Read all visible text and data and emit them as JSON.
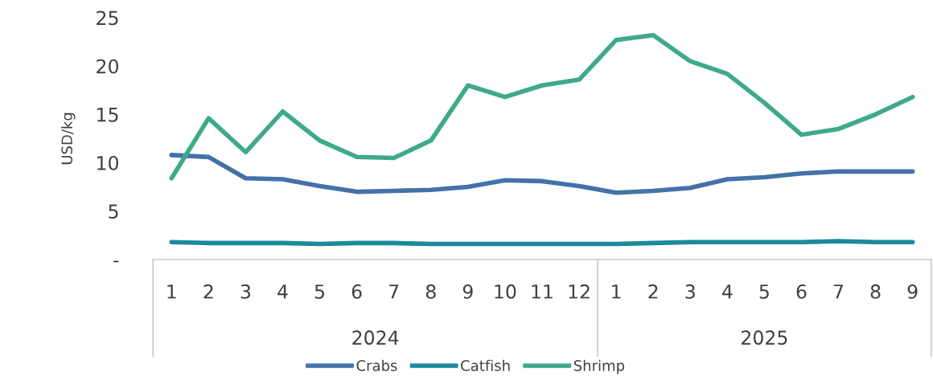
{
  "chart_data": {
    "type": "line",
    "ylabel": "USD/kg",
    "categories": [
      "1",
      "2",
      "3",
      "4",
      "5",
      "6",
      "7",
      "8",
      "9",
      "10",
      "11",
      "12",
      "1",
      "2",
      "3",
      "4",
      "5",
      "6",
      "7",
      "8",
      "9"
    ],
    "annotations": [
      "2024",
      "2025"
    ],
    "series": [
      {
        "name": "Crabs",
        "color": "#4472a8",
        "values": [
          10.8,
          10.6,
          8.4,
          8.3,
          7.6,
          7.0,
          7.1,
          7.2,
          7.5,
          8.2,
          8.1,
          7.6,
          6.9,
          7.1,
          7.4,
          8.3,
          8.5,
          8.9,
          9.1,
          9.1,
          9.1
        ]
      },
      {
        "name": "Catfish",
        "color": "#1a8a9c",
        "values": [
          1.8,
          1.7,
          1.7,
          1.7,
          1.6,
          1.7,
          1.7,
          1.6,
          1.6,
          1.6,
          1.6,
          1.6,
          1.6,
          1.7,
          1.8,
          1.8,
          1.8,
          1.8,
          1.9,
          1.8,
          1.8
        ]
      },
      {
        "name": "Shrimp",
        "color": "#3fa98c",
        "values": [
          8.4,
          14.6,
          11.1,
          15.3,
          12.3,
          10.6,
          10.5,
          12.3,
          18.0,
          16.8,
          18.0,
          18.6,
          22.7,
          23.2,
          20.5,
          19.2,
          16.2,
          12.9,
          13.5,
          15.0,
          16.8
        ]
      }
    ],
    "ylim": [
      0,
      25
    ],
    "yticks": [
      {
        "value": 0,
        "label": "-"
      },
      5,
      10,
      15,
      20,
      25
    ],
    "grid": false,
    "legend": "bottom",
    "marker": "none",
    "line_style": "solid"
  }
}
